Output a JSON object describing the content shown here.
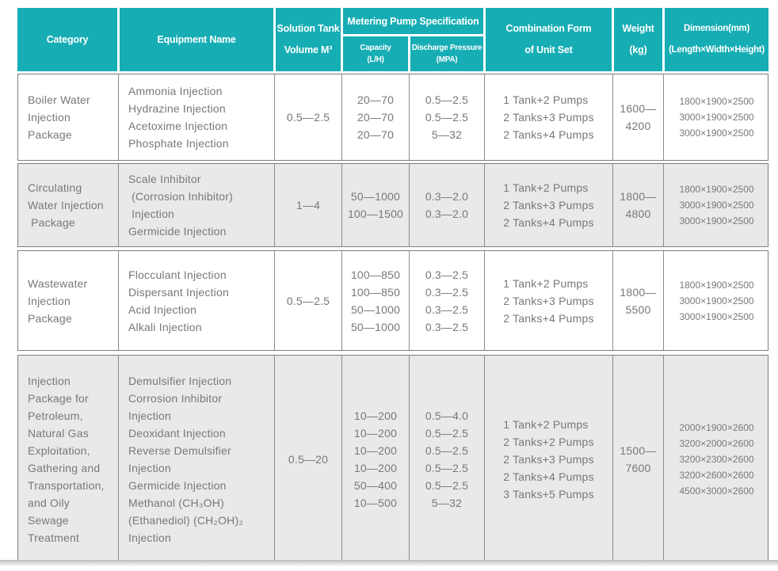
{
  "colors": {
    "header_bg": "#16adb4",
    "alt_row_bg": "#e9e9ea",
    "border": "#8d8d8f",
    "body_text": "#77787a",
    "header_text": "#ffffff"
  },
  "header": {
    "category": "Category",
    "equipment_name": "Equipment Name",
    "solution_tank": [
      "Solution Tank",
      "Volume M³"
    ],
    "metering_pump": "Metering Pump Specification",
    "capacity": [
      "Capacity",
      "(L/H)"
    ],
    "discharge_pressure": [
      "Discharge Pressure",
      "(MPA)"
    ],
    "combination": [
      "Combination Form",
      "of Unit Set"
    ],
    "weight": [
      "Weight",
      "(kg)"
    ],
    "dimension": [
      "Dimension(mm)",
      "(Length×Width×Height)"
    ]
  },
  "rows": [
    {
      "category": [
        "Boiler Water",
        "Injection",
        "Package"
      ],
      "equipment": [
        "Ammonia Injection",
        "Hydrazine Injection",
        "Acetoxime Injection",
        "Phosphate Injection"
      ],
      "tank_volume": "0.5—2.5",
      "capacity": [
        "20—70",
        "20—70",
        "20—70"
      ],
      "discharge": [
        "0.5—2.5",
        "0.5—2.5",
        "5—32"
      ],
      "combination": [
        "1 Tank+2 Pumps",
        "2 Tanks+3 Pumps",
        "2 Tanks+4 Pumps"
      ],
      "weight": [
        "1600—",
        "4200"
      ],
      "dimension": [
        "1800×1900×2500",
        "3000×1900×2500",
        "3000×1900×2500"
      ]
    },
    {
      "category": [
        "Circulating",
        "Water Injection",
        " Package"
      ],
      "equipment": [
        "Scale Inhibitor",
        " (Corrosion Inhibitor)",
        " Injection",
        "Germicide Injection"
      ],
      "tank_volume": "1—4",
      "capacity": [
        "50—1000",
        "100—1500"
      ],
      "discharge": [
        "0.3—2.0",
        "0.3—2.0"
      ],
      "combination": [
        "1 Tank+2 Pumps",
        "2 Tanks+3 Pumps",
        "2 Tanks+4 Pumps"
      ],
      "weight": [
        "1800—",
        "4800"
      ],
      "dimension": [
        "1800×1900×2500",
        "3000×1900×2500",
        "3000×1900×2500"
      ]
    },
    {
      "category": [
        "Wastewater",
        "Injection",
        "Package"
      ],
      "equipment": [
        "Flocculant Injection",
        "Dispersant Injection",
        "Acid Injection",
        "Alkali Injection"
      ],
      "tank_volume": "0.5—2.5",
      "capacity": [
        "100—850",
        "100—850",
        "50—1000",
        "50—1000"
      ],
      "discharge": [
        "0.3—2.5",
        "0.3—2.5",
        "0.3—2.5",
        "0.3—2.5"
      ],
      "combination": [
        "1 Tank+2 Pumps",
        "2 Tanks+3 Pumps",
        "2 Tanks+4 Pumps"
      ],
      "weight": [
        "1800—",
        "5500"
      ],
      "dimension": [
        "1800×1900×2500",
        "3000×1900×2500",
        "3000×1900×2500"
      ]
    },
    {
      "category": [
        "Injection",
        "Package for",
        "Petroleum,",
        "Natural Gas",
        "Exploitation,",
        "Gathering and",
        "Transportation,",
        "and Oily",
        "Sewage",
        "Treatment"
      ],
      "equipment": [
        "Demulsifier Injection",
        "Corrosion Inhibitor",
        "Injection",
        "Deoxidant Injection",
        "Reverse Demulsifier",
        "Injection",
        "Germicide Injection",
        "Methanol (CH₃OH)",
        "(Ethanediol) (CH₂OH)₂",
        "Injection"
      ],
      "tank_volume": "0.5—20",
      "capacity": [
        "10—200",
        "10—200",
        "10—200",
        "10—200",
        "50—400",
        "10—500"
      ],
      "discharge": [
        "0.5—4.0",
        "0.5—2.5",
        "0.5—2.5",
        "0.5—2.5",
        "0.5—2.5",
        "5—32"
      ],
      "combination": [
        "1 Tank+2 Pumps",
        "2 Tanks+2 Pumps",
        "2 Tanks+3 Pumps",
        "2 Tanks+4 Pumps",
        "3 Tanks+5 Pumps"
      ],
      "weight": [
        "1500—",
        "7600"
      ],
      "dimension": [
        "2000×1900×2600",
        "3200×2000×2600",
        "3200×2300×2600",
        "3200×2600×2600",
        "4500×3000×2600"
      ]
    }
  ]
}
